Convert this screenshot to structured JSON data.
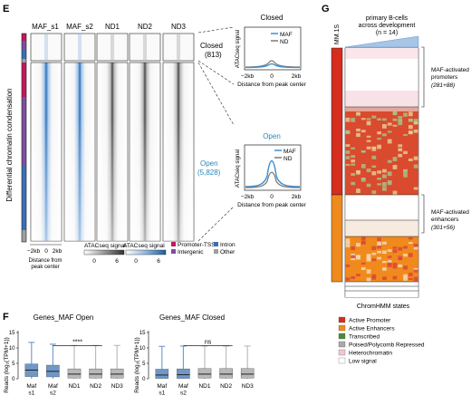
{
  "panel_e": {
    "label": "E",
    "y_axis_title": "Differential chromatin condensation",
    "column_headers": [
      "MAF_s1",
      "MAF_s2",
      "ND1",
      "ND2",
      "ND3"
    ],
    "closed_label": "Closed",
    "closed_count": "(813)",
    "open_label": "Open",
    "open_count": "(5,828)",
    "x_tick_left": "−2kb",
    "x_tick_right": "2kb",
    "x_tick_mid": "0",
    "x_axis_title_line1": "Distance from",
    "x_axis_title_line2": "peak center",
    "colorbar_gray_title": "ATACseq signal",
    "colorbar_blue_title": "ATACseq signal",
    "colorbar_min": "0",
    "colorbar_max": "6",
    "region_legend": [
      {
        "label": "Promoter-TSS",
        "color": "#c2185b"
      },
      {
        "label": "Intergenic",
        "color": "#7b4fa0"
      },
      {
        "label": "Intron",
        "color": "#3a6fb5"
      },
      {
        "label": "Other",
        "color": "#9e9e9e"
      }
    ],
    "profile_closed": {
      "title": "Closed",
      "ylabel": "ATACseq signal",
      "xlabel": "Distance from peak center",
      "xticks": [
        "−2kb",
        "0",
        "2kb"
      ],
      "legend": [
        "MAF",
        "ND"
      ]
    },
    "profile_open": {
      "title": "Open",
      "ylabel": "ATACseq signal",
      "xlabel": "Distance from peak center",
      "xticks": [
        "−2kb",
        "0",
        "2kb"
      ],
      "legend": [
        "MAF",
        "ND"
      ]
    }
  },
  "panel_g": {
    "label": "G",
    "title_line1": "primary B-cells",
    "title_line2": "across development",
    "title_line3": "(n = 14)",
    "mm1s_label": "MM.1S",
    "x_label": "ChromHMM states",
    "promoters_label": "MAF-activated",
    "promoters_label2": "promoters",
    "promoters_count": "(281+88)",
    "enhancers_label": "MAF-activated",
    "enhancers_label2": "enhancers",
    "enhancers_count": "(301+56)",
    "chromhmm_legend": [
      {
        "label": "Active Promoter",
        "color": "#d62d1e"
      },
      {
        "label": "Active Enhancers",
        "color": "#f08a1c"
      },
      {
        "label": "Transcribed",
        "color": "#4c8a3a"
      },
      {
        "label": "Poised/Polycomb Repressed",
        "color": "#a9a9a9"
      },
      {
        "label": "Heterochromatin",
        "color": "#f0c7d6"
      },
      {
        "label": "Low signal",
        "color": "#ffffff"
      }
    ]
  },
  "panel_f": {
    "label": "F",
    "ylabel": "Reads (log₂(TPM+1))",
    "colors": {
      "maf": "#6f98c8",
      "nd": "#b8b8b8"
    },
    "chart_data": [
      {
        "type": "box",
        "title": "Genes_MAF Open",
        "categories": [
          "Maf s1",
          "Maf s2",
          "ND1",
          "ND2",
          "ND3"
        ],
        "ylim": [
          0,
          15
        ],
        "yticks": [
          0,
          5,
          10,
          15
        ],
        "boxes": [
          {
            "whisker_low": 0,
            "q1": 0.7,
            "median": 2.8,
            "q3": 4.8,
            "whisker_high": 11.8
          },
          {
            "whisker_low": 0,
            "q1": 0.6,
            "median": 2.4,
            "q3": 4.4,
            "whisker_high": 11.2
          },
          {
            "whisker_low": 0,
            "q1": 0.2,
            "median": 1.5,
            "q3": 3.2,
            "whisker_high": 10.8
          },
          {
            "whisker_low": 0,
            "q1": 0.2,
            "median": 1.5,
            "q3": 3.2,
            "whisker_high": 10.8
          },
          {
            "whisker_low": 0,
            "q1": 0.2,
            "median": 1.5,
            "q3": 3.2,
            "whisker_high": 10.8
          }
        ],
        "significance": "****"
      },
      {
        "type": "box",
        "title": "Genes_MAF Closed",
        "categories": [
          "Maf s1",
          "Maf s2",
          "ND1",
          "ND2",
          "ND3"
        ],
        "ylim": [
          0,
          15
        ],
        "yticks": [
          0,
          5,
          10,
          15
        ],
        "boxes": [
          {
            "whisker_low": 0,
            "q1": 0.1,
            "median": 1.2,
            "q3": 3.1,
            "whisker_high": 10.5
          },
          {
            "whisker_low": 0,
            "q1": 0.1,
            "median": 1.3,
            "q3": 3.2,
            "whisker_high": 10.6
          },
          {
            "whisker_low": 0,
            "q1": 0.2,
            "median": 1.5,
            "q3": 3.3,
            "whisker_high": 10.6
          },
          {
            "whisker_low": 0,
            "q1": 0.2,
            "median": 1.5,
            "q3": 3.3,
            "whisker_high": 10.6
          },
          {
            "whisker_low": 0,
            "q1": 0.2,
            "median": 1.5,
            "q3": 3.3,
            "whisker_high": 10.6
          }
        ],
        "significance": "ns"
      }
    ]
  }
}
